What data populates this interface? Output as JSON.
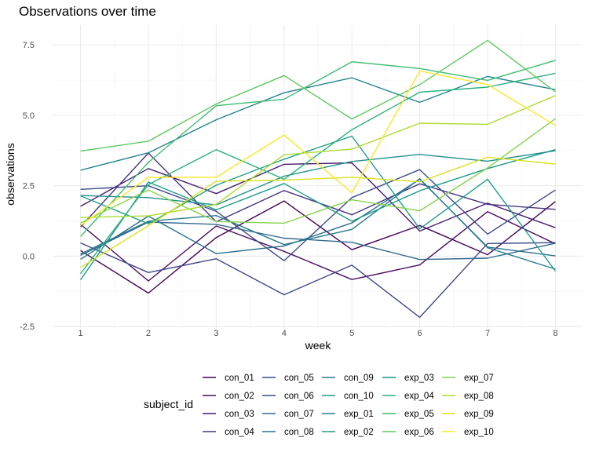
{
  "chart_data": {
    "type": "line",
    "title": "Observations over time",
    "xlabel": "week",
    "ylabel": "observations",
    "x": [
      1,
      2,
      3,
      4,
      5,
      6,
      7,
      8
    ],
    "x_ticks": [
      "1",
      "2",
      "3",
      "4",
      "5",
      "6",
      "7",
      "8"
    ],
    "xlim": [
      0.6,
      8.4
    ],
    "ylim": [
      -2.55,
      8.2
    ],
    "y_ticks": [
      -2.5,
      0.0,
      2.5,
      5.0,
      7.5
    ],
    "y_tick_labels": [
      "-2.5",
      "0.0",
      "2.5",
      "5.0",
      "7.5"
    ],
    "grid": true,
    "legend": {
      "title": "subject_id",
      "position": "bottom",
      "columns": 5
    },
    "series": [
      {
        "name": "con_01",
        "color": "#440154",
        "values": [
          0.2,
          -1.31,
          0.66,
          1.96,
          0.23,
          1.09,
          0.05,
          1.94
        ]
      },
      {
        "name": "con_02",
        "color": "#470E61",
        "values": [
          1.13,
          -0.88,
          1.07,
          0.17,
          -0.83,
          -0.31,
          1.58,
          0.44
        ]
      },
      {
        "name": "con_03",
        "color": "#481B6D",
        "values": [
          1.77,
          3.11,
          2.22,
          3.26,
          3.31,
          0.89,
          1.88,
          1.01
        ]
      },
      {
        "name": "con_04",
        "color": "#46337F",
        "values": [
          1.04,
          3.66,
          1.22,
          2.33,
          1.47,
          2.57,
          1.84,
          1.66
        ]
      },
      {
        "name": "con_05",
        "color": "#3F4889",
        "values": [
          0.47,
          -0.58,
          -0.09,
          -1.37,
          -0.32,
          -2.17,
          0.45,
          0.48
        ]
      },
      {
        "name": "con_06",
        "color": "#3E4A89",
        "values": [
          2.37,
          2.5,
          1.59,
          -0.16,
          2.08,
          3.07,
          0.78,
          2.35
        ]
      },
      {
        "name": "con_07",
        "color": "#31688E",
        "values": [
          0.03,
          1.21,
          1.13,
          0.64,
          0.49,
          -0.12,
          -0.07,
          0.46
        ]
      },
      {
        "name": "con_08",
        "color": "#2C718E",
        "values": [
          -0.11,
          1.42,
          0.09,
          0.36,
          1.18,
          2.73,
          0.32,
          0.01
        ]
      },
      {
        "name": "con_09",
        "color": "#287C8E",
        "values": [
          0.08,
          1.24,
          1.44,
          0.41,
          0.95,
          2.75,
          0.3,
          -0.46
        ]
      },
      {
        "name": "con_10",
        "color": "#1F9E89",
        "values": [
          2.14,
          1.15,
          2.52,
          3.44,
          4.26,
          0.97,
          2.73,
          -0.53
        ]
      },
      {
        "name": "exp_01",
        "color": "#25848E",
        "values": [
          3.05,
          3.67,
          4.84,
          5.8,
          6.33,
          5.46,
          6.38,
          5.91
        ]
      },
      {
        "name": "exp_02",
        "color": "#1E9B8A",
        "values": [
          -0.84,
          2.63,
          1.64,
          2.58,
          1.24,
          2.32,
          3.11,
          3.78
        ]
      },
      {
        "name": "exp_03",
        "color": "#21908D",
        "values": [
          2.15,
          2.08,
          1.82,
          2.84,
          3.36,
          3.61,
          3.37,
          3.74
        ]
      },
      {
        "name": "exp_04",
        "color": "#2DB27D",
        "values": [
          -0.62,
          2.54,
          3.78,
          2.73,
          4.49,
          5.82,
          6.0,
          6.49
        ]
      },
      {
        "name": "exp_05",
        "color": "#3FBC73",
        "values": [
          0.7,
          3.33,
          5.34,
          5.57,
          6.9,
          6.66,
          6.24,
          6.95
        ]
      },
      {
        "name": "exp_06",
        "color": "#5EC962",
        "values": [
          3.73,
          4.08,
          5.4,
          6.41,
          4.87,
          6.09,
          7.66,
          5.83
        ]
      },
      {
        "name": "exp_07",
        "color": "#84D44B",
        "values": [
          1.18,
          2.35,
          1.23,
          1.17,
          2.0,
          1.61,
          3.13,
          4.88
        ]
      },
      {
        "name": "exp_08",
        "color": "#ADDC30",
        "values": [
          1.37,
          1.43,
          1.84,
          3.6,
          3.8,
          4.72,
          4.68,
          5.7
        ]
      },
      {
        "name": "exp_09",
        "color": "#D8E219",
        "values": [
          -0.4,
          1.08,
          2.66,
          2.7,
          2.8,
          2.64,
          3.51,
          3.27
        ]
      },
      {
        "name": "exp_10",
        "color": "#FDE725",
        "values": [
          1.09,
          2.8,
          2.8,
          4.3,
          2.25,
          6.57,
          6.09,
          4.64
        ]
      }
    ]
  }
}
